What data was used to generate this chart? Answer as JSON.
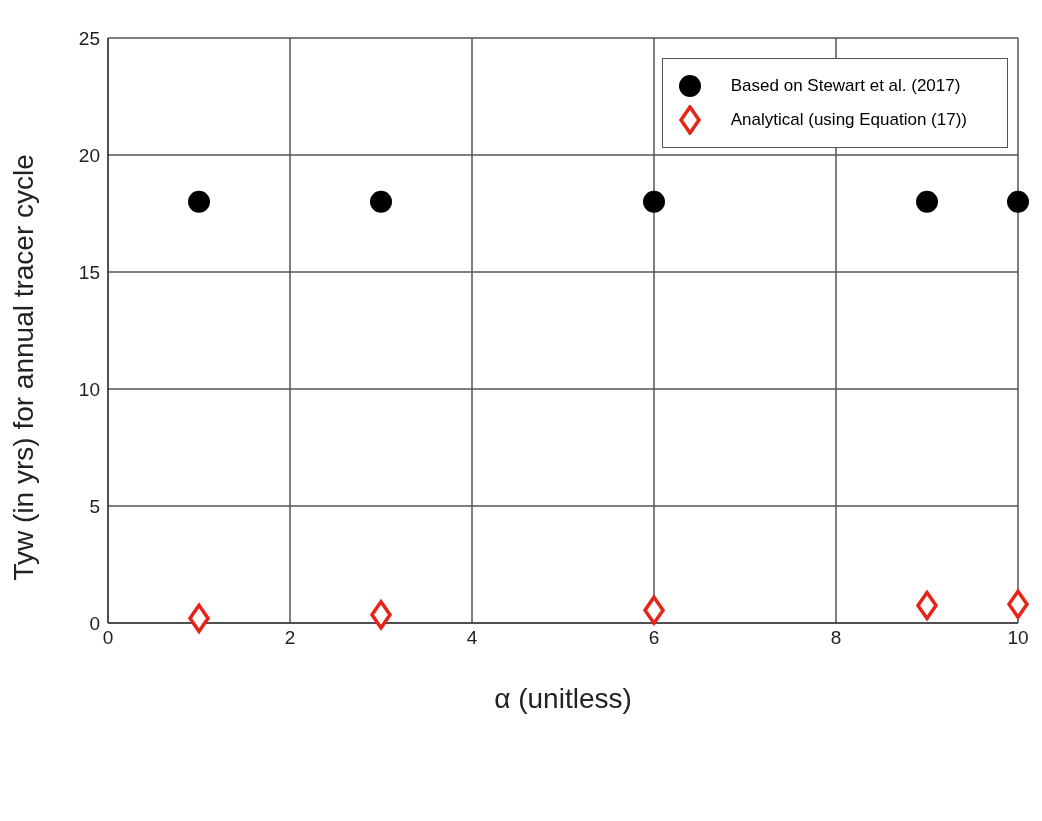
{
  "chart_data": {
    "type": "scatter",
    "xlabel": "α (unitless)",
    "ylabel": "Tyw (in yrs) for annual tracer cycle",
    "x": [
      1,
      3,
      6,
      9,
      10
    ],
    "series": [
      {
        "name": "Based on Stewart et al. (2017)",
        "color": "#000000",
        "marker": "circle",
        "values": [
          18,
          18,
          18,
          18,
          18
        ]
      },
      {
        "name": "Analytical (using Equation (17))",
        "color": "#e8231a",
        "marker": "diamond",
        "values": [
          0.2,
          0.35,
          0.55,
          0.75,
          0.8
        ]
      }
    ],
    "xlim": [
      0,
      10
    ],
    "xticks": [
      0,
      2,
      4,
      6,
      8,
      10
    ],
    "ylim": [
      0,
      25
    ],
    "yticks": [
      0,
      5,
      10,
      15,
      20,
      25
    ],
    "grid": true,
    "legend": "top right"
  }
}
